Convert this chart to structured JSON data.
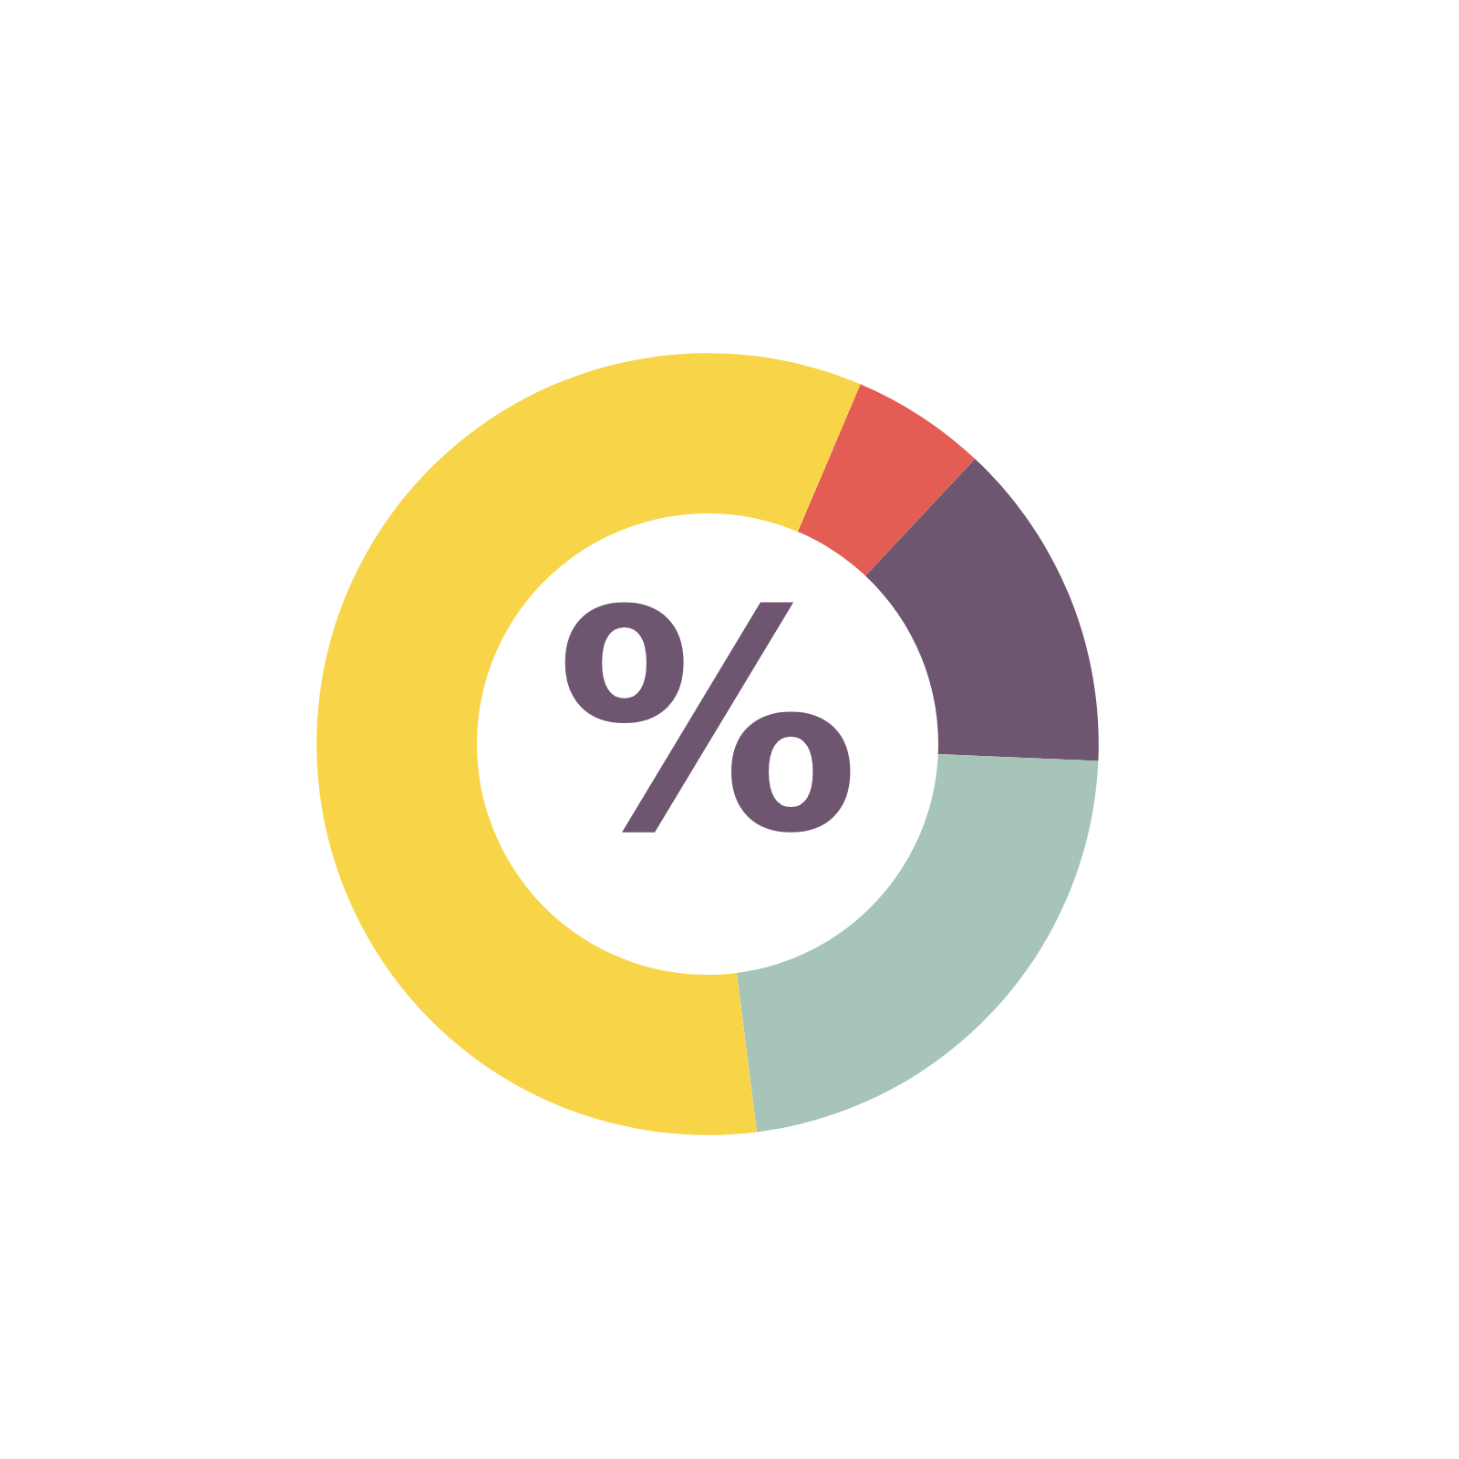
{
  "chart_data": {
    "type": "donut",
    "categories": [
      null,
      null,
      null,
      null
    ],
    "values": [
      5.6,
      13.7,
      22.3,
      58.4
    ],
    "colors": [
      "#e35d54",
      "#6e5570",
      "#a6c4b8",
      "#f8d548"
    ],
    "annotations": [
      "%"
    ]
  }
}
